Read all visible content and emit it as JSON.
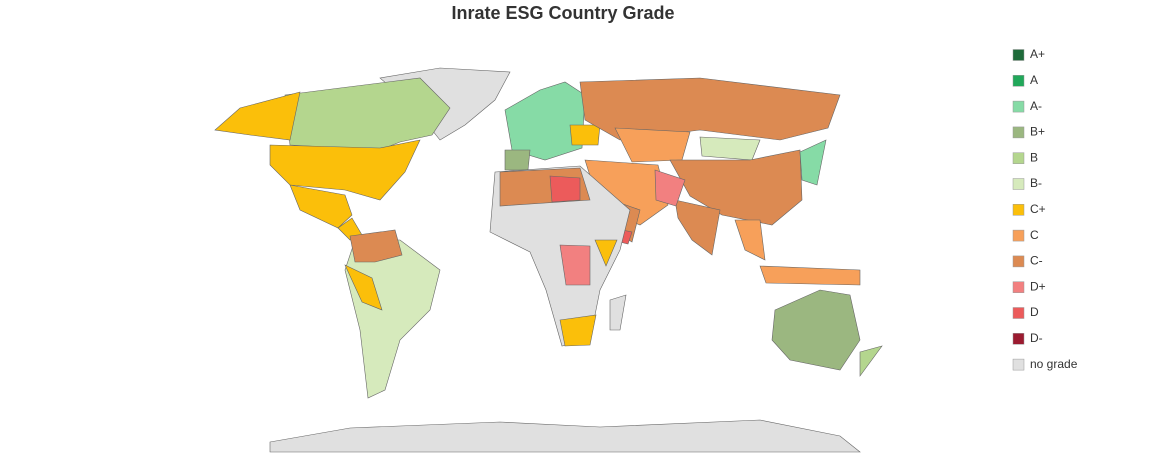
{
  "title": "Inrate ESG Country Grade",
  "legend": [
    {
      "label": "A+",
      "color": "#1e6b3a"
    },
    {
      "label": "A",
      "color": "#21a85a"
    },
    {
      "label": "A-",
      "color": "#86dba6"
    },
    {
      "label": "B+",
      "color": "#9bb780"
    },
    {
      "label": "B",
      "color": "#b4d68e"
    },
    {
      "label": "B-",
      "color": "#d6eabc"
    },
    {
      "label": "C+",
      "color": "#fbbf0a"
    },
    {
      "label": "C",
      "color": "#f7a05a"
    },
    {
      "label": "C-",
      "color": "#dc8a52"
    },
    {
      "label": "D+",
      "color": "#f28080"
    },
    {
      "label": "D",
      "color": "#ec5b5b"
    },
    {
      "label": "D-",
      "color": "#9b1b30"
    },
    {
      "label": "no grade",
      "color": "#e0e0e0"
    }
  ]
}
